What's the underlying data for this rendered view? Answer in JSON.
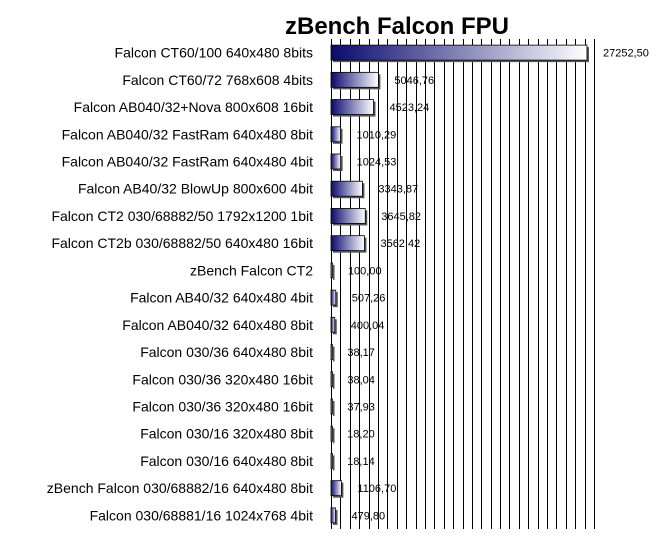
{
  "chart_data": {
    "type": "bar",
    "orientation": "horizontal",
    "title": "zBench Falcon FPU",
    "xlabel": "",
    "ylabel": "",
    "grid": true,
    "xlim": [
      0,
      28000
    ],
    "categories": [
      "Falcon CT60/100 640x480 8bits",
      "Falcon CT60/72 768x608 4bits",
      "Falcon AB040/32+Nova 800x608 16bit",
      "Falcon AB040/32 FastRam 640x480 8bit",
      "Falcon AB040/32 FastRam 640x480 4bit",
      "Falcon AB40/32 BlowUp 800x600 4bit",
      "Falcon CT2 030/68882/50 1792x1200 1bit",
      "Falcon CT2b 030/68882/50 640x480 16bit",
      "zBench Falcon CT2",
      "Falcon AB40/32 640x480 4bit",
      "Falcon AB040/32 640x480 8bit",
      "Falcon 030/36 640x480 8bit",
      "Falcon 030/36 320x480 16bit",
      "Falcon 030/36 320x480 16bit",
      "Falcon 030/16 320x480 8bit",
      "Falcon 030/16 640x480 8bit",
      "zBench Falcon 030/68882/16 640x480 8bit",
      "Falcon 030/68881/16 1024x768 4bit"
    ],
    "values": [
      27252.5,
      5046.76,
      4523.24,
      1010.29,
      1024.53,
      3343.87,
      3645.82,
      3562.42,
      100.0,
      507.26,
      400.04,
      38.17,
      38.04,
      37.93,
      18.2,
      18.14,
      1106.7,
      479.8
    ],
    "value_labels": [
      "27252,50",
      "5046,76",
      "4523,24",
      "1010,29",
      "1024,53",
      "3343,87",
      "3645,82",
      "3562,42",
      "100,00",
      "507,26",
      "400,04",
      "38,17",
      "38,04",
      "37,93",
      "18,20",
      "18,14",
      "1106,70",
      "479,80"
    ],
    "colors": {
      "bar_dark": "#0a0a6e",
      "bar_light": "#ffffff",
      "grid": "#000000",
      "text": "#000000"
    }
  }
}
